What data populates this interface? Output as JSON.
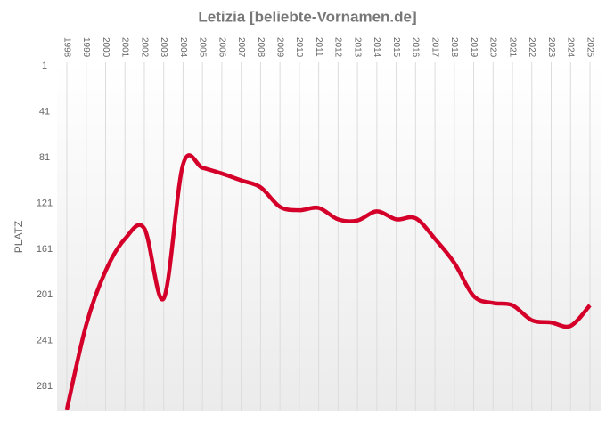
{
  "chart_data": {
    "type": "line",
    "title": "Letizia [beliebte-Vornamen.de]",
    "y_label": "PLATZ",
    "categories": [
      "1998",
      "1999",
      "2000",
      "2001",
      "2002",
      "2003",
      "2004",
      "2005",
      "2006",
      "2007",
      "2008",
      "2009",
      "2010",
      "2011",
      "2012",
      "2013",
      "2014",
      "2015",
      "2016",
      "2017",
      "2018",
      "2019",
      "2020",
      "2021",
      "2022",
      "2023",
      "2024",
      "2025"
    ],
    "series": [
      {
        "name": "Letizia",
        "color": "#d4002a",
        "values": [
          301,
          227,
          180,
          152,
          143,
          204,
          87,
          90,
          95,
          101,
          107,
          124,
          127,
          125,
          135,
          136,
          128,
          135,
          134,
          152,
          173,
          202,
          208,
          210,
          223,
          225,
          228,
          210
        ]
      }
    ],
    "ylim": [
      1,
      301
    ],
    "y_inverted": true,
    "yticks": [
      1,
      41,
      81,
      121,
      161,
      201,
      241,
      281
    ],
    "grid": true
  }
}
